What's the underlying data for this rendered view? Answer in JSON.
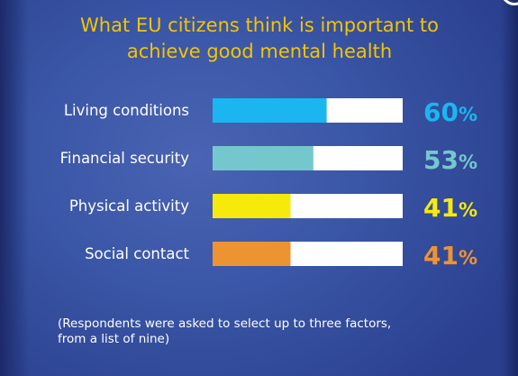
{
  "title_lines": [
    "What EU citizens think is important to",
    "achieve good mental health"
  ],
  "chart_data": {
    "type": "bar",
    "orientation": "horizontal",
    "categories": [
      "Living conditions",
      "Financial security",
      "Physical activity",
      "Social contact"
    ],
    "values": [
      60,
      53,
      41,
      41
    ],
    "value_suffix": "%",
    "xlim": [
      0,
      100
    ],
    "colors": [
      "#1bb6ef",
      "#74c8cd",
      "#f5ea0c",
      "#ee9332"
    ],
    "track_color": "#ffffff",
    "grid": false
  },
  "footnote_lines": [
    "(Respondents were asked to select up to three factors,",
    "from a list of nine)"
  ],
  "colors": {
    "title": "#f4c400",
    "text": "#ffffff"
  }
}
